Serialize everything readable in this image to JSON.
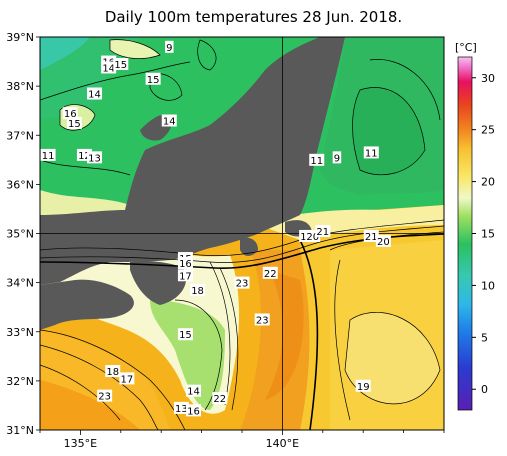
{
  "title": "Daily 100m temperatures 28 Jun. 2018.",
  "lat_labels": [
    "39°N",
    "38°N",
    "37°N",
    "36°N",
    "35°N",
    "34°N",
    "33°N",
    "32°N",
    "31°N"
  ],
  "lon_labels": [
    "135°E",
    "140°E"
  ],
  "colorbar": {
    "unit": "[°C]",
    "ticks": [
      "30",
      "25",
      "20",
      "15",
      "10",
      "5",
      "0"
    ],
    "range": [
      -2,
      32
    ],
    "colors": [
      "#5a1fb4",
      "#2a3cd0",
      "#1f7ce8",
      "#2fb8e8",
      "#37c8b0",
      "#2cc060",
      "#5cd040",
      "#a0e060",
      "#f0f8c8",
      "#f8e868",
      "#f8c030",
      "#f08020",
      "#e84020",
      "#e81060",
      "#f070c8",
      "#f8c0f0"
    ]
  },
  "contour_labels": [
    {
      "text": "9",
      "lon": 137.2,
      "lat": 38.8
    },
    {
      "text": "16",
      "lon": 135.7,
      "lat": 38.5
    },
    {
      "text": "14",
      "lon": 135.7,
      "lat": 38.38
    },
    {
      "text": "15",
      "lon": 136.0,
      "lat": 38.45
    },
    {
      "text": "15",
      "lon": 136.8,
      "lat": 38.15
    },
    {
      "text": "14",
      "lon": 135.35,
      "lat": 37.85
    },
    {
      "text": "16",
      "lon": 134.75,
      "lat": 37.45
    },
    {
      "text": "15",
      "lon": 134.85,
      "lat": 37.25
    },
    {
      "text": "14",
      "lon": 137.2,
      "lat": 37.3
    },
    {
      "text": "11",
      "lon": 134.2,
      "lat": 36.6
    },
    {
      "text": "12",
      "lon": 135.1,
      "lat": 36.6
    },
    {
      "text": "13",
      "lon": 135.35,
      "lat": 36.55
    },
    {
      "text": "11",
      "lon": 140.85,
      "lat": 36.5
    },
    {
      "text": "9",
      "lon": 141.35,
      "lat": 36.55
    },
    {
      "text": "11",
      "lon": 142.2,
      "lat": 36.65
    },
    {
      "text": "19",
      "lon": 140.6,
      "lat": 34.95
    },
    {
      "text": "20",
      "lon": 140.75,
      "lat": 34.95
    },
    {
      "text": "21",
      "lon": 141.0,
      "lat": 35.05
    },
    {
      "text": "21",
      "lon": 142.2,
      "lat": 34.95
    },
    {
      "text": "20",
      "lon": 142.5,
      "lat": 34.85
    },
    {
      "text": "15",
      "lon": 137.6,
      "lat": 34.5
    },
    {
      "text": "16",
      "lon": 137.6,
      "lat": 34.4
    },
    {
      "text": "17",
      "lon": 137.6,
      "lat": 34.15
    },
    {
      "text": "18",
      "lon": 137.9,
      "lat": 33.85
    },
    {
      "text": "23",
      "lon": 139.0,
      "lat": 34.0
    },
    {
      "text": "22",
      "lon": 139.7,
      "lat": 34.2
    },
    {
      "text": "23",
      "lon": 139.5,
      "lat": 33.25
    },
    {
      "text": "15",
      "lon": 137.6,
      "lat": 32.95
    },
    {
      "text": "18",
      "lon": 135.8,
      "lat": 32.2
    },
    {
      "text": "17",
      "lon": 136.15,
      "lat": 32.05
    },
    {
      "text": "23",
      "lon": 135.6,
      "lat": 31.7
    },
    {
      "text": "14",
      "lon": 137.8,
      "lat": 31.8
    },
    {
      "text": "13",
      "lon": 137.5,
      "lat": 31.45
    },
    {
      "text": "16",
      "lon": 137.8,
      "lat": 31.4
    },
    {
      "text": "22",
      "lon": 138.45,
      "lat": 31.65
    },
    {
      "text": "19",
      "lon": 142.0,
      "lat": 31.9
    }
  ]
}
